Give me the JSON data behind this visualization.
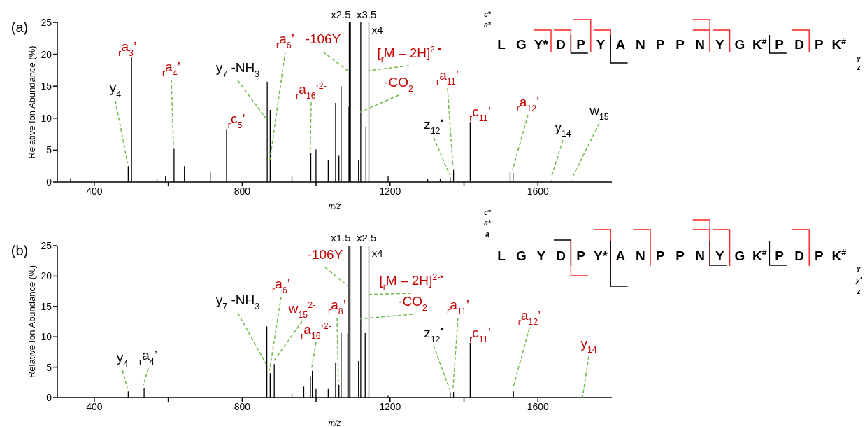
{
  "chart_data": [
    {
      "type": "bar",
      "title": "(a)",
      "xlabel": "m/z",
      "ylabel": "Relative Ion Abundance (%)",
      "color": "#000000",
      "xlim": [
        300,
        1800
      ],
      "xticks": [
        400,
        {
          "value": 600,
          "label": null
        },
        800,
        {
          "value": 1000,
          "label": null
        },
        1200,
        {
          "value": 1400,
          "label": null
        },
        1600
      ],
      "ylim": [
        0,
        25
      ],
      "yticks": [
        0,
        5,
        10,
        15,
        20,
        25
      ],
      "x": [
        336,
        492,
        501,
        570,
        593,
        616,
        644,
        714,
        758,
        868,
        876,
        935,
        986,
        1000,
        1033,
        1053,
        1062,
        1068,
        1087,
        1090,
        1093,
        1115,
        1121,
        1135,
        1143,
        1195,
        1302,
        1336,
        1363,
        1372,
        1417,
        1525,
        1533,
        1638,
        1695
      ],
      "values": [
        0.6,
        2.5,
        19.6,
        0.5,
        0.9,
        5.2,
        2.5,
        1.7,
        8.3,
        15.7,
        11.3,
        1.0,
        4.6,
        5.1,
        3.5,
        12.4,
        4.1,
        15,
        11.8,
        25,
        25,
        3.4,
        25,
        8.7,
        25,
        1.0,
        0.5,
        0.5,
        0.7,
        1.9,
        9.4,
        1.6,
        1.4,
        0.3,
        0.3
      ],
      "annotations": [
        {
          "text": "y$_{4}$",
          "x": 492,
          "y": 2.5
        },
        {
          "text": "$_{r}$a$_{3}$’",
          "x": 501,
          "y": 19.6
        },
        {
          "text": "$_{r}$a$_{4}$’",
          "x": 616,
          "y": 5.2
        },
        {
          "text": "$_{r}$c$_{5}$’",
          "x": 758,
          "y": 8.3
        },
        {
          "text": "y$_{7}$ -NH$_{3}$",
          "x": 868,
          "y": 9.4
        },
        {
          "text": "$_{r}$a$_{6}$’",
          "x": 876,
          "y": 2.7
        },
        {
          "text": "-106Y",
          "x": 1087,
          "y": 17
        },
        {
          "text": "$_{r}$a$_{16}$’$^{2-}$",
          "x": 986,
          "y": 4.6
        },
        {
          "text": "[$_{r}$M – 2H]$^{2-•}$",
          "x": 1143,
          "y": 17
        },
        {
          "text": "-CO$_{2}$",
          "x": 1121,
          "y": 10.5
        },
        {
          "text": "x2.5",
          "x": 1090,
          "y": 25
        },
        {
          "text": "x3.5",
          "x": 1121,
          "y": 25
        },
        {
          "text": "x4",
          "x": 1143,
          "y": 25
        },
        {
          "text": "z$_{12}$$^{•}$",
          "x": 1363,
          "y": 0.7
        },
        {
          "text": "$_{r}$a$_{11}$’",
          "x": 1372,
          "y": 1.9
        },
        {
          "text": "$_{r}$c$_{11}$’",
          "x": 1417,
          "y": 9.4
        },
        {
          "text": "$_{r}$a$_{12}$’",
          "x": 1533,
          "y": 1.4
        },
        {
          "text": "y$_{14}$",
          "x": 1638,
          "y": 0.3
        },
        {
          "text": "w$_{15}$",
          "x": 1695,
          "y": 0.3
        },
        "L G Y* D P Y A N P P N Y G K$^{#}$ P D P K$^{#}$",
        "c*",
        "a*",
        "y",
        "z"
      ]
    },
    {
      "type": "bar",
      "title": "(b)",
      "xlabel": "m/z",
      "ylabel": "Relative Ion Abundance (%)",
      "color": "#000000",
      "xlim": [
        300,
        1800
      ],
      "xticks": [
        400,
        {
          "value": 600,
          "label": null
        },
        800,
        {
          "value": 1000,
          "label": null
        },
        1200,
        {
          "value": 1400,
          "label": null
        },
        1600
      ],
      "ylim": [
        0,
        25
      ],
      "yticks": [
        0,
        5,
        10,
        15,
        20,
        25
      ],
      "x": [
        492,
        535,
        867,
        876,
        887,
        935,
        967,
        985,
        990,
        1000,
        1033,
        1053,
        1062,
        1068,
        1086,
        1089,
        1092,
        1115,
        1121,
        1133,
        1143,
        1195,
        1363,
        1372,
        1417,
        1534
      ],
      "values": [
        1.0,
        1.6,
        11.7,
        4.0,
        5.5,
        0.6,
        1.8,
        3.5,
        4.4,
        1.4,
        1.4,
        5.8,
        2.1,
        10.6,
        10.6,
        25,
        25,
        6.0,
        25,
        10.6,
        25,
        0.3,
        0.9,
        0.9,
        9.0,
        1.0
      ],
      "annotations": [
        {
          "text": "y$_{4}$",
          "x": 492,
          "y": 1.0
        },
        {
          "text": "$_{r}$a$_{4}$’",
          "x": 535,
          "y": 1.6
        },
        {
          "text": "y$_{7}$ -NH$_{3}$",
          "x": 867,
          "y": 5
        },
        {
          "text": "$_{r}$a$_{6}$’",
          "x": 876,
          "y": 4.0
        },
        {
          "text": "w$_{15}$$^{2-}$",
          "x": 887,
          "y": 5.5
        },
        {
          "text": "$_{r}$a$_{16}$’$^{2-}$",
          "x": 990,
          "y": 4.4
        },
        {
          "text": "$_{r}$a$_{8}$’",
          "x": 1062,
          "y": 2.1
        },
        {
          "text": "-106Y",
          "x": 1086,
          "y": 18
        },
        {
          "text": "[$_{r}$M – 2H]$^{2-•}$",
          "x": 1143,
          "y": 16.5
        },
        {
          "text": "-CO$_{2}$",
          "x": 1121,
          "y": 12.5
        },
        {
          "text": "x1.5",
          "x": 1090,
          "y": 25
        },
        {
          "text": "x2.5",
          "x": 1121,
          "y": 25
        },
        {
          "text": "x4",
          "x": 1143,
          "y": 25
        },
        {
          "text": "z$_{12}$$^{•}$",
          "x": 1363,
          "y": 0.9
        },
        {
          "text": "$_{r}$a$_{11}$’",
          "x": 1372,
          "y": 0.9
        },
        {
          "text": "$_{r}$c$_{11}$’",
          "x": 1417,
          "y": 9.0
        },
        {
          "text": "$_{r}$a$_{12}$’",
          "x": 1534,
          "y": 1.0
        },
        "y$_{14}$",
        "L G Y D P Y* A N P P N Y G K$^{#}$ P D P K$^{#}$",
        "c*",
        "a*",
        "a",
        "y",
        "y'",
        "z"
      ]
    }
  ]
}
